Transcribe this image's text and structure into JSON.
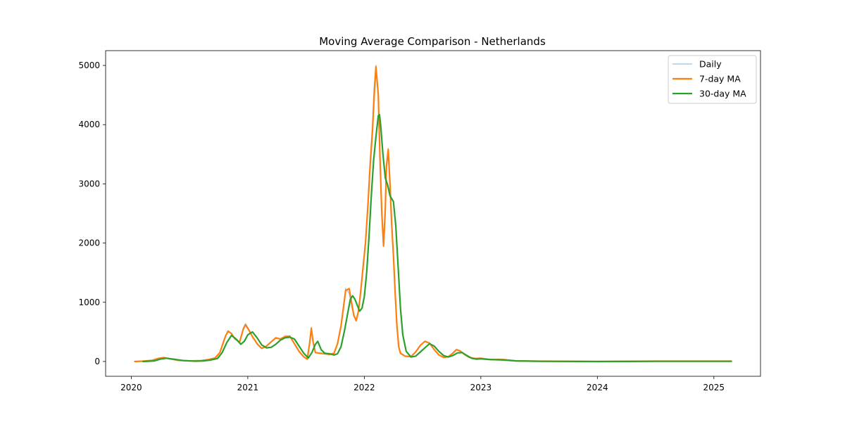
{
  "chart_data": {
    "type": "line",
    "title": "Moving Average Comparison - Netherlands",
    "xlabel": "",
    "ylabel": "",
    "xlim": [
      2019.78,
      2025.4
    ],
    "ylim": [
      -250,
      5250
    ],
    "xticks": [
      {
        "value": 2020,
        "label": "2020"
      },
      {
        "value": 2021,
        "label": "2021"
      },
      {
        "value": 2022,
        "label": "2022"
      },
      {
        "value": 2023,
        "label": "2023"
      },
      {
        "value": 2024,
        "label": "2024"
      },
      {
        "value": 2025,
        "label": "2025"
      }
    ],
    "yticks": [
      {
        "value": 0,
        "label": "0"
      },
      {
        "value": 1000,
        "label": "1000"
      },
      {
        "value": 2000,
        "label": "2000"
      },
      {
        "value": 3000,
        "label": "3000"
      },
      {
        "value": 4000,
        "label": "4000"
      },
      {
        "value": 5000,
        "label": "5000"
      }
    ],
    "grid": false,
    "legend_position": "upper right",
    "series": [
      {
        "name": "Daily",
        "color": "#a6cbe6",
        "values": [
          [
            2020.03,
            0
          ],
          [
            2020.1,
            5
          ],
          [
            2020.18,
            20
          ],
          [
            2020.24,
            55
          ],
          [
            2020.28,
            70
          ],
          [
            2020.32,
            50
          ],
          [
            2020.4,
            20
          ],
          [
            2020.5,
            10
          ],
          [
            2020.6,
            15
          ],
          [
            2020.66,
            30
          ],
          [
            2020.72,
            60
          ],
          [
            2020.76,
            150
          ],
          [
            2020.79,
            330
          ],
          [
            2020.81,
            440
          ],
          [
            2020.83,
            520
          ],
          [
            2020.86,
            480
          ],
          [
            2020.89,
            380
          ],
          [
            2020.93,
            320
          ],
          [
            2020.96,
            560
          ],
          [
            2020.98,
            640
          ],
          [
            2021.01,
            540
          ],
          [
            2021.04,
            420
          ],
          [
            2021.08,
            300
          ],
          [
            2021.12,
            220
          ],
          [
            2021.16,
            260
          ],
          [
            2021.2,
            330
          ],
          [
            2021.24,
            400
          ],
          [
            2021.28,
            380
          ],
          [
            2021.32,
            430
          ],
          [
            2021.36,
            430
          ],
          [
            2021.4,
            300
          ],
          [
            2021.44,
            170
          ],
          [
            2021.48,
            80
          ],
          [
            2021.51,
            40
          ],
          [
            2021.53,
            300
          ],
          [
            2021.545,
            580
          ],
          [
            2021.56,
            330
          ],
          [
            2021.58,
            150
          ],
          [
            2021.62,
            140
          ],
          [
            2021.66,
            130
          ],
          [
            2021.7,
            120
          ],
          [
            2021.74,
            140
          ],
          [
            2021.77,
            300
          ],
          [
            2021.8,
            600
          ],
          [
            2021.82,
            900
          ],
          [
            2021.84,
            1230
          ],
          [
            2021.87,
            1150
          ],
          [
            2021.89,
            950
          ],
          [
            2021.91,
            760
          ],
          [
            2021.93,
            700
          ],
          [
            2021.95,
            850
          ],
          [
            2021.97,
            1200
          ],
          [
            2021.99,
            1650
          ],
          [
            2022.01,
            2000
          ],
          [
            2022.03,
            2600
          ],
          [
            2022.05,
            3400
          ],
          [
            2022.07,
            4000
          ],
          [
            2022.085,
            4650
          ],
          [
            2022.1,
            5000
          ],
          [
            2022.12,
            4500
          ],
          [
            2022.135,
            3400
          ],
          [
            2022.15,
            2600
          ],
          [
            2022.165,
            1950
          ],
          [
            2022.18,
            2500
          ],
          [
            2022.19,
            3200
          ],
          [
            2022.205,
            3600
          ],
          [
            2022.22,
            3100
          ],
          [
            2022.235,
            2300
          ],
          [
            2022.25,
            1800
          ],
          [
            2022.265,
            1150
          ],
          [
            2022.28,
            620
          ],
          [
            2022.295,
            260
          ],
          [
            2022.31,
            140
          ],
          [
            2022.35,
            90
          ],
          [
            2022.4,
            80
          ],
          [
            2022.44,
            160
          ],
          [
            2022.48,
            270
          ],
          [
            2022.52,
            340
          ],
          [
            2022.56,
            310
          ],
          [
            2022.6,
            200
          ],
          [
            2022.64,
            110
          ],
          [
            2022.68,
            70
          ],
          [
            2022.72,
            80
          ],
          [
            2022.76,
            140
          ],
          [
            2022.79,
            200
          ],
          [
            2022.82,
            180
          ],
          [
            2022.86,
            120
          ],
          [
            2022.9,
            70
          ],
          [
            2022.95,
            50
          ],
          [
            2023.0,
            55
          ],
          [
            2023.05,
            40
          ],
          [
            2023.1,
            30
          ],
          [
            2023.15,
            35
          ],
          [
            2023.2,
            30
          ],
          [
            2023.3,
            10
          ],
          [
            2023.5,
            5
          ],
          [
            2024.0,
            0
          ],
          [
            2024.5,
            5
          ],
          [
            2025.0,
            5
          ],
          [
            2025.15,
            5
          ]
        ]
      },
      {
        "name": "7-day MA",
        "color": "#ff7f0e",
        "values": [
          [
            2020.03,
            0
          ],
          [
            2020.1,
            5
          ],
          [
            2020.18,
            20
          ],
          [
            2020.24,
            55
          ],
          [
            2020.28,
            65
          ],
          [
            2020.32,
            50
          ],
          [
            2020.4,
            20
          ],
          [
            2020.5,
            10
          ],
          [
            2020.6,
            15
          ],
          [
            2020.66,
            30
          ],
          [
            2020.72,
            60
          ],
          [
            2020.76,
            150
          ],
          [
            2020.79,
            320
          ],
          [
            2020.81,
            430
          ],
          [
            2020.83,
            510
          ],
          [
            2020.86,
            470
          ],
          [
            2020.89,
            380
          ],
          [
            2020.93,
            330
          ],
          [
            2020.96,
            540
          ],
          [
            2020.98,
            620
          ],
          [
            2021.01,
            530
          ],
          [
            2021.04,
            420
          ],
          [
            2021.08,
            300
          ],
          [
            2021.12,
            220
          ],
          [
            2021.16,
            260
          ],
          [
            2021.2,
            330
          ],
          [
            2021.24,
            400
          ],
          [
            2021.28,
            380
          ],
          [
            2021.32,
            420
          ],
          [
            2021.36,
            430
          ],
          [
            2021.4,
            300
          ],
          [
            2021.44,
            170
          ],
          [
            2021.48,
            80
          ],
          [
            2021.51,
            40
          ],
          [
            2021.53,
            300
          ],
          [
            2021.545,
            560
          ],
          [
            2021.56,
            330
          ],
          [
            2021.58,
            150
          ],
          [
            2021.62,
            140
          ],
          [
            2021.66,
            130
          ],
          [
            2021.7,
            120
          ],
          [
            2021.74,
            140
          ],
          [
            2021.77,
            300
          ],
          [
            2021.8,
            600
          ],
          [
            2021.82,
            900
          ],
          [
            2021.84,
            1200
          ],
          [
            2021.87,
            1230
          ],
          [
            2021.89,
            1000
          ],
          [
            2021.91,
            780
          ],
          [
            2021.93,
            690
          ],
          [
            2021.95,
            850
          ],
          [
            2021.97,
            1200
          ],
          [
            2021.99,
            1600
          ],
          [
            2022.01,
            2000
          ],
          [
            2022.03,
            2600
          ],
          [
            2022.05,
            3300
          ],
          [
            2022.07,
            3900
          ],
          [
            2022.085,
            4500
          ],
          [
            2022.1,
            4980
          ],
          [
            2022.12,
            4500
          ],
          [
            2022.135,
            3400
          ],
          [
            2022.15,
            2500
          ],
          [
            2022.165,
            1950
          ],
          [
            2022.18,
            2600
          ],
          [
            2022.19,
            3300
          ],
          [
            2022.205,
            3580
          ],
          [
            2022.22,
            3000
          ],
          [
            2022.235,
            2300
          ],
          [
            2022.25,
            1800
          ],
          [
            2022.265,
            1150
          ],
          [
            2022.28,
            600
          ],
          [
            2022.295,
            250
          ],
          [
            2022.31,
            140
          ],
          [
            2022.35,
            90
          ],
          [
            2022.4,
            80
          ],
          [
            2022.44,
            160
          ],
          [
            2022.48,
            270
          ],
          [
            2022.52,
            340
          ],
          [
            2022.56,
            310
          ],
          [
            2022.6,
            200
          ],
          [
            2022.64,
            110
          ],
          [
            2022.68,
            70
          ],
          [
            2022.72,
            80
          ],
          [
            2022.76,
            140
          ],
          [
            2022.79,
            200
          ],
          [
            2022.82,
            180
          ],
          [
            2022.86,
            120
          ],
          [
            2022.9,
            70
          ],
          [
            2022.95,
            50
          ],
          [
            2023.0,
            55
          ],
          [
            2023.05,
            40
          ],
          [
            2023.1,
            30
          ],
          [
            2023.15,
            35
          ],
          [
            2023.2,
            30
          ],
          [
            2023.3,
            10
          ],
          [
            2023.5,
            5
          ],
          [
            2024.0,
            0
          ],
          [
            2024.5,
            5
          ],
          [
            2025.0,
            5
          ],
          [
            2025.15,
            5
          ]
        ]
      },
      {
        "name": "30-day MA",
        "color": "#2ca02c",
        "values": [
          [
            2020.1,
            0
          ],
          [
            2020.2,
            10
          ],
          [
            2020.25,
            40
          ],
          [
            2020.3,
            55
          ],
          [
            2020.36,
            40
          ],
          [
            2020.45,
            15
          ],
          [
            2020.55,
            5
          ],
          [
            2020.62,
            10
          ],
          [
            2020.68,
            25
          ],
          [
            2020.74,
            50
          ],
          [
            2020.78,
            150
          ],
          [
            2020.82,
            320
          ],
          [
            2020.86,
            440
          ],
          [
            2020.9,
            380
          ],
          [
            2020.94,
            290
          ],
          [
            2020.97,
            340
          ],
          [
            2021.0,
            450
          ],
          [
            2021.04,
            500
          ],
          [
            2021.08,
            400
          ],
          [
            2021.12,
            280
          ],
          [
            2021.16,
            230
          ],
          [
            2021.2,
            240
          ],
          [
            2021.24,
            290
          ],
          [
            2021.28,
            360
          ],
          [
            2021.32,
            400
          ],
          [
            2021.36,
            410
          ],
          [
            2021.4,
            380
          ],
          [
            2021.44,
            260
          ],
          [
            2021.48,
            140
          ],
          [
            2021.52,
            60
          ],
          [
            2021.55,
            150
          ],
          [
            2021.58,
            290
          ],
          [
            2021.6,
            340
          ],
          [
            2021.63,
            200
          ],
          [
            2021.66,
            140
          ],
          [
            2021.7,
            130
          ],
          [
            2021.74,
            110
          ],
          [
            2021.77,
            130
          ],
          [
            2021.8,
            250
          ],
          [
            2021.83,
            520
          ],
          [
            2021.86,
            840
          ],
          [
            2021.88,
            1050
          ],
          [
            2021.9,
            1110
          ],
          [
            2021.92,
            1050
          ],
          [
            2021.94,
            950
          ],
          [
            2021.96,
            850
          ],
          [
            2021.98,
            900
          ],
          [
            2022.0,
            1100
          ],
          [
            2022.02,
            1500
          ],
          [
            2022.04,
            2100
          ],
          [
            2022.06,
            2800
          ],
          [
            2022.08,
            3400
          ],
          [
            2022.1,
            3800
          ],
          [
            2022.12,
            4150
          ],
          [
            2022.13,
            4170
          ],
          [
            2022.14,
            4000
          ],
          [
            2022.16,
            3500
          ],
          [
            2022.18,
            3100
          ],
          [
            2022.2,
            2980
          ],
          [
            2022.22,
            2800
          ],
          [
            2022.25,
            2700
          ],
          [
            2022.27,
            2300
          ],
          [
            2022.29,
            1600
          ],
          [
            2022.31,
            900
          ],
          [
            2022.33,
            450
          ],
          [
            2022.36,
            170
          ],
          [
            2022.4,
            75
          ],
          [
            2022.44,
            90
          ],
          [
            2022.48,
            160
          ],
          [
            2022.52,
            230
          ],
          [
            2022.56,
            300
          ],
          [
            2022.6,
            260
          ],
          [
            2022.64,
            170
          ],
          [
            2022.68,
            100
          ],
          [
            2022.72,
            75
          ],
          [
            2022.76,
            100
          ],
          [
            2022.8,
            145
          ],
          [
            2022.84,
            150
          ],
          [
            2022.88,
            100
          ],
          [
            2022.92,
            55
          ],
          [
            2022.96,
            40
          ],
          [
            2023.0,
            45
          ],
          [
            2023.06,
            35
          ],
          [
            2023.12,
            30
          ],
          [
            2023.2,
            25
          ],
          [
            2023.3,
            10
          ],
          [
            2023.5,
            3
          ],
          [
            2024.0,
            0
          ],
          [
            2024.5,
            3
          ],
          [
            2025.0,
            3
          ],
          [
            2025.15,
            3
          ]
        ]
      }
    ]
  }
}
